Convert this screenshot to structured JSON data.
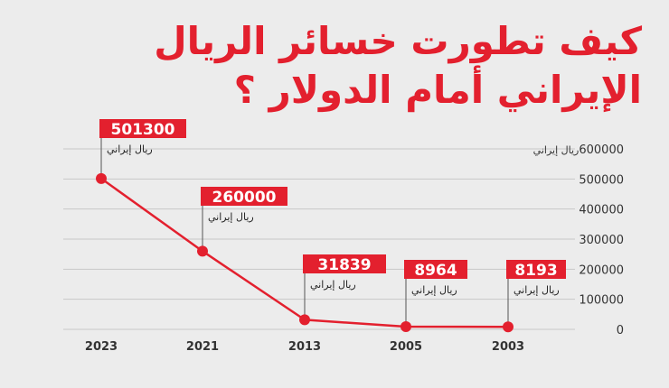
{
  "title_line1": "كيف تطورت خسائر الريال",
  "title_line2": "الإيراني أمام الدولار ؟",
  "chart_data": {
    "type": "line",
    "x": [
      "2023",
      "2021",
      "2013",
      "2005",
      "2003"
    ],
    "values": [
      501300,
      260000,
      31839,
      8964,
      8193
    ],
    "value_labels": [
      "501300",
      "260000",
      "31839",
      "8964",
      "8193"
    ],
    "unit_label": "ريال إيراني",
    "y_axis_unit": "ريال إيراني",
    "y_ticks": [
      "600000",
      "500000",
      "400000",
      "300000",
      "200000",
      "100000",
      "0"
    ],
    "ylim": [
      0,
      600000
    ],
    "grid": true,
    "y_axis_position": "right",
    "colors": {
      "line": "#e3202e",
      "label_bg": "#e3202e",
      "label_text": "#ffffff",
      "grid": "#c8c8c8",
      "text": "#333333"
    }
  }
}
